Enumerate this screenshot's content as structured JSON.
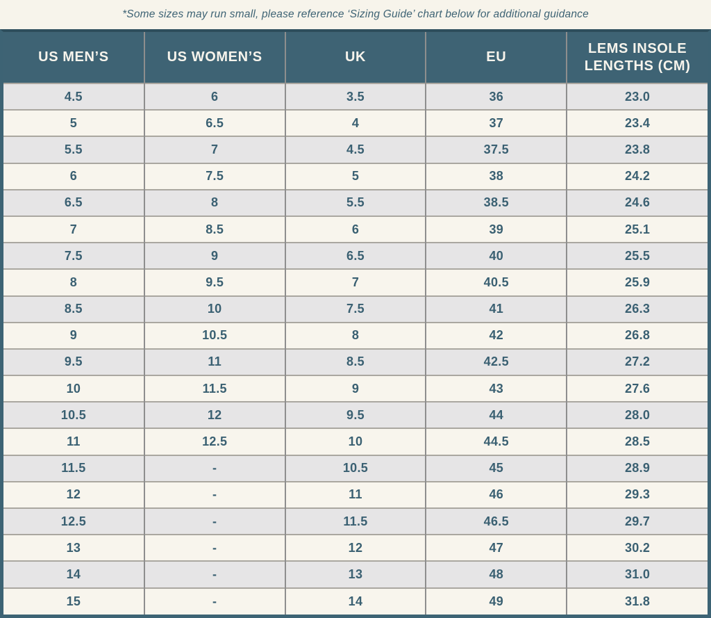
{
  "note": {
    "text": "*Some sizes may run small, please reference ‘Sizing Guide’ chart below for additional guidance"
  },
  "table": {
    "columns": [
      "US MEN’S",
      "US WOMEN’S",
      "UK",
      "EU",
      "LEMS INSOLE LENGTHS (CM)"
    ],
    "rows": [
      [
        "4.5",
        "6",
        "3.5",
        "36",
        "23.0"
      ],
      [
        "5",
        "6.5",
        "4",
        "37",
        "23.4"
      ],
      [
        "5.5",
        "7",
        "4.5",
        "37.5",
        "23.8"
      ],
      [
        "6",
        "7.5",
        "5",
        "38",
        "24.2"
      ],
      [
        "6.5",
        "8",
        "5.5",
        "38.5",
        "24.6"
      ],
      [
        "7",
        "8.5",
        "6",
        "39",
        "25.1"
      ],
      [
        "7.5",
        "9",
        "6.5",
        "40",
        "25.5"
      ],
      [
        "8",
        "9.5",
        "7",
        "40.5",
        "25.9"
      ],
      [
        "8.5",
        "10",
        "7.5",
        "41",
        "26.3"
      ],
      [
        "9",
        "10.5",
        "8",
        "42",
        "26.8"
      ],
      [
        "9.5",
        "11",
        "8.5",
        "42.5",
        "27.2"
      ],
      [
        "10",
        "11.5",
        "9",
        "43",
        "27.6"
      ],
      [
        "10.5",
        "12",
        "9.5",
        "44",
        "28.0"
      ],
      [
        "11",
        "12.5",
        "10",
        "44.5",
        "28.5"
      ],
      [
        "11.5",
        "-",
        "10.5",
        "45",
        "28.9"
      ],
      [
        "12",
        "-",
        "11",
        "46",
        "29.3"
      ],
      [
        "12.5",
        "-",
        "11.5",
        "46.5",
        "29.7"
      ],
      [
        "13",
        "-",
        "12",
        "47",
        "30.2"
      ],
      [
        "14",
        "-",
        "13",
        "48",
        "31.0"
      ],
      [
        "15",
        "-",
        "14",
        "49",
        "31.8"
      ]
    ]
  },
  "colors": {
    "page_bg": "#f7f4eb",
    "header_bg": "#3e6374",
    "header_text": "#f7f4ec",
    "cell_text": "#3a6072",
    "row_alt_bg": "#e6e5e6",
    "row_base_bg": "#f8f5ed",
    "outer_border": "#3d6374"
  }
}
